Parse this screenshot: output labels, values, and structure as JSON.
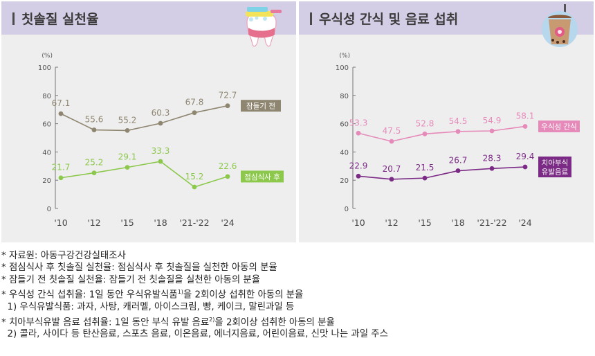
{
  "colors": {
    "header_bg": "#d4cde6",
    "panel_bg": "#eeeeee",
    "olive": "#8f8671",
    "green": "#8cc84b",
    "pink": "#e68aba",
    "purple": "#7b2a85"
  },
  "chart_data": [
    {
      "type": "line",
      "title": "칫솔질 실천율",
      "unit": "(%)",
      "categories": [
        "'10",
        "'12",
        "'15",
        "'18",
        "'21-'22",
        "'24"
      ],
      "ylim": [
        0,
        100
      ],
      "yticks": [
        "0",
        "20",
        "40",
        "60",
        "80",
        "100"
      ],
      "grid": false,
      "legend_placement": "right-of-lines",
      "series": [
        {
          "name": "잠들기 전",
          "color": "#8f8671",
          "values": [
            67.1,
            55.6,
            55.2,
            60.3,
            67.8,
            72.7
          ],
          "labels": [
            "67.1",
            "55.6",
            "55.2",
            "60.3",
            "67.8",
            "72.7"
          ]
        },
        {
          "name": "점심식사 후",
          "color": "#8cc84b",
          "values": [
            21.7,
            25.2,
            29.1,
            33.3,
            15.2,
            22.6
          ],
          "labels": [
            "21.7",
            "25.2",
            "29.1",
            "33.3",
            "15.2",
            "22.6"
          ]
        }
      ]
    },
    {
      "type": "line",
      "title": "우식성 간식 및 음료 섭취",
      "unit": "(%)",
      "categories": [
        "'10",
        "'12",
        "'15",
        "'18",
        "'21-'22",
        "'24"
      ],
      "ylim": [
        0,
        100
      ],
      "yticks": [
        "0",
        "20",
        "40",
        "60",
        "80",
        "100"
      ],
      "grid": false,
      "legend_placement": "right-of-lines",
      "series": [
        {
          "name": "우식성 간식",
          "color": "#e68aba",
          "values": [
            53.3,
            47.5,
            52.8,
            54.5,
            54.9,
            58.1
          ],
          "labels": [
            "53.3",
            "47.5",
            "52.8",
            "54.5",
            "54.9",
            "58.1"
          ]
        },
        {
          "name": "치아부식 유발음료",
          "name_lines": [
            "치아부식",
            "유발음료"
          ],
          "color": "#7b2a85",
          "values": [
            22.9,
            20.7,
            21.5,
            26.7,
            28.3,
            29.4
          ],
          "labels": [
            "22.9",
            "20.7",
            "21.5",
            "26.7",
            "28.3",
            "29.4"
          ]
        }
      ]
    }
  ],
  "notes": [
    {
      "text": "* 자료원: 아동구강건강실태조사"
    },
    {
      "text": "* 점심식사 후 칫솔질 실천율: 점심식사 후 칫솔질을 실천한 아동의 분율"
    },
    {
      "text": "* 잠들기 전 칫솔질 실천율: 잠들기 전 칫솔질을 실천한 아동의 분율"
    },
    {
      "pre": "* 우식성 간식 섭취율: 1일 동안 우식유발식품",
      "sup": "1)",
      "post": "을 2회이상 섭취한 아동의 분율"
    },
    {
      "text": "  1) 우식유발식품: 과자, 사탕, 캐러멜, 아이스크림, 빵, 케이크, 말린과일 등"
    },
    {
      "pre": "* 치아부식유발 음료 섭취율: 1일 동안 부식 유발 음료",
      "sup": "2)",
      "post": "을 2회이상 섭취한 아동의 분율"
    },
    {
      "text": "  2) 콜라, 사이다 등 탄산음료, 스포츠 음료, 이온음료, 에너지음료, 어린이음료, 신맛 나는 과일 주스"
    }
  ],
  "icons": {
    "left": "tooth-brush-icon",
    "right": "drink-cup-icon"
  }
}
